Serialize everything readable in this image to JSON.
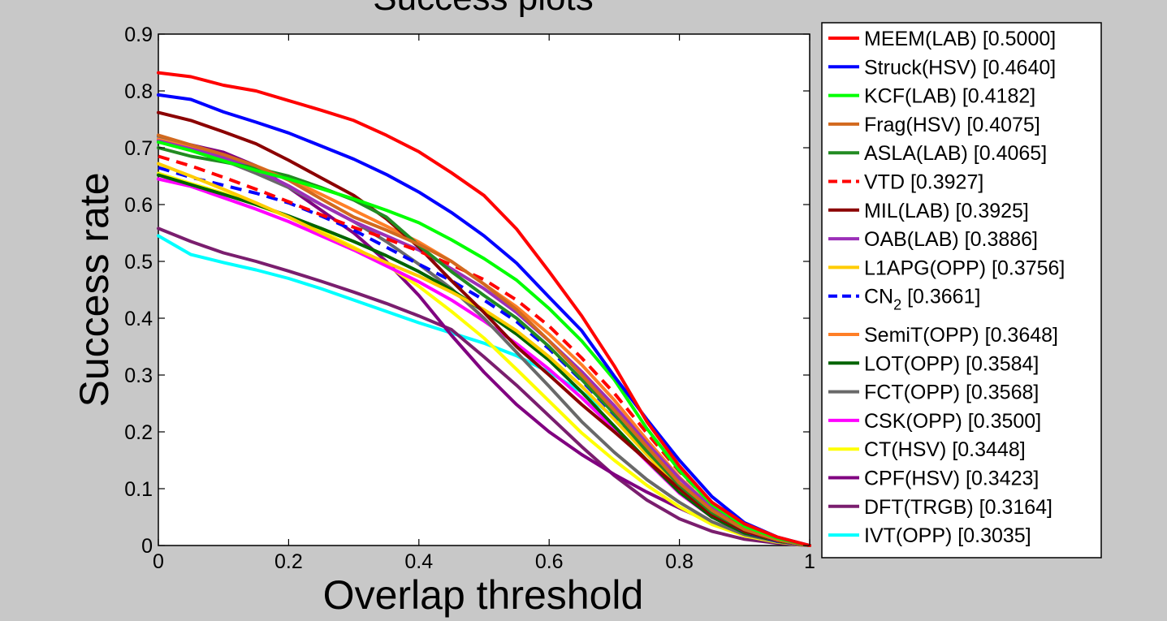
{
  "chart_data": {
    "type": "line",
    "title": "Success plots",
    "xlabel": "Overlap threshold",
    "ylabel": "Success rate",
    "xlim": [
      0,
      1
    ],
    "ylim": [
      0,
      0.9
    ],
    "x_ticks": [
      "0",
      "0.2",
      "0.4",
      "0.6",
      "0.8",
      "1"
    ],
    "y_ticks": [
      "0",
      "0.1",
      "0.2",
      "0.3",
      "0.4",
      "0.5",
      "0.6",
      "0.7",
      "0.8",
      "0.9"
    ],
    "grid": false,
    "legend_position": "outside-right",
    "x": [
      0,
      0.05,
      0.1,
      0.15,
      0.2,
      0.25,
      0.3,
      0.35,
      0.4,
      0.45,
      0.5,
      0.55,
      0.6,
      0.65,
      0.7,
      0.75,
      0.8,
      0.85,
      0.9,
      0.95,
      1
    ],
    "series": [
      {
        "name": "MEEM(LAB) [0.5000]",
        "color": "#ff0000",
        "dash": false,
        "values": [
          0.832,
          0.825,
          0.81,
          0.8,
          0.783,
          0.766,
          0.748,
          0.722,
          0.693,
          0.656,
          0.616,
          0.557,
          0.482,
          0.404,
          0.316,
          0.218,
          0.14,
          0.076,
          0.038,
          0.015,
          0
        ]
      },
      {
        "name": "Struck(HSV) [0.4640]",
        "color": "#0000ff",
        "dash": false,
        "values": [
          0.793,
          0.785,
          0.763,
          0.745,
          0.726,
          0.703,
          0.68,
          0.653,
          0.622,
          0.586,
          0.545,
          0.497,
          0.437,
          0.378,
          0.298,
          0.222,
          0.15,
          0.086,
          0.04,
          0.015,
          0
        ]
      },
      {
        "name": "KCF(LAB) [0.4182]",
        "color": "#00ff00",
        "dash": false,
        "values": [
          0.71,
          0.695,
          0.677,
          0.66,
          0.645,
          0.628,
          0.61,
          0.59,
          0.568,
          0.538,
          0.505,
          0.467,
          0.417,
          0.36,
          0.292,
          0.206,
          0.132,
          0.072,
          0.034,
          0.013,
          0
        ]
      },
      {
        "name": "Frag(HSV) [0.4075]",
        "color": "#d2691e",
        "dash": false,
        "values": [
          0.722,
          0.705,
          0.688,
          0.668,
          0.643,
          0.61,
          0.578,
          0.555,
          0.53,
          0.5,
          0.46,
          0.415,
          0.36,
          0.3,
          0.238,
          0.174,
          0.11,
          0.062,
          0.028,
          0.01,
          0
        ]
      },
      {
        "name": "ASLA(LAB) [0.4065]",
        "color": "#228b22",
        "dash": false,
        "values": [
          0.7,
          0.685,
          0.675,
          0.664,
          0.65,
          0.63,
          0.608,
          0.578,
          0.528,
          0.482,
          0.44,
          0.4,
          0.35,
          0.292,
          0.232,
          0.166,
          0.106,
          0.058,
          0.028,
          0.01,
          0
        ]
      },
      {
        "name": "VTD [0.3927]",
        "color": "#ff0000",
        "dash": true,
        "values": [
          0.685,
          0.668,
          0.648,
          0.627,
          0.605,
          0.582,
          0.56,
          0.54,
          0.518,
          0.494,
          0.468,
          0.432,
          0.386,
          0.33,
          0.268,
          0.198,
          0.13,
          0.073,
          0.032,
          0.012,
          0
        ]
      },
      {
        "name": "MIL(LAB) [0.3925]",
        "color": "#8b0000",
        "dash": false,
        "values": [
          0.762,
          0.748,
          0.728,
          0.707,
          0.678,
          0.647,
          0.616,
          0.575,
          0.525,
          0.466,
          0.41,
          0.35,
          0.3,
          0.248,
          0.2,
          0.15,
          0.1,
          0.054,
          0.025,
          0.009,
          0
        ]
      },
      {
        "name": "OAB(LAB) [0.3886]",
        "color": "#9b30b8",
        "dash": false,
        "values": [
          0.712,
          0.698,
          0.683,
          0.662,
          0.633,
          0.6,
          0.57,
          0.545,
          0.52,
          0.487,
          0.452,
          0.41,
          0.36,
          0.306,
          0.246,
          0.18,
          0.118,
          0.066,
          0.03,
          0.011,
          0
        ]
      },
      {
        "name": "L1APG(OPP) [0.3756]",
        "color": "#ffcc00",
        "dash": false,
        "values": [
          0.672,
          0.65,
          0.627,
          0.603,
          0.578,
          0.55,
          0.523,
          0.498,
          0.474,
          0.446,
          0.415,
          0.378,
          0.332,
          0.28,
          0.222,
          0.16,
          0.1,
          0.055,
          0.025,
          0.009,
          0
        ]
      },
      {
        "name": "CN_2 [0.3661]",
        "color": "#0000ff",
        "dash": true,
        "values": [
          0.665,
          0.648,
          0.634,
          0.62,
          0.603,
          0.58,
          0.555,
          0.525,
          0.495,
          0.466,
          0.432,
          0.394,
          0.346,
          0.29,
          0.23,
          0.166,
          0.104,
          0.056,
          0.024,
          0.008,
          0
        ]
      },
      {
        "name": "SemiT(OPP) [0.3648]",
        "color": "#ff7f27",
        "dash": false,
        "values": [
          0.715,
          0.7,
          0.685,
          0.668,
          0.645,
          0.618,
          0.59,
          0.562,
          0.534,
          0.5,
          0.46,
          0.42,
          0.372,
          0.318,
          0.256,
          0.186,
          0.12,
          0.066,
          0.03,
          0.011,
          0
        ]
      },
      {
        "name": "LOT(OPP) [0.3584]",
        "color": "#006400",
        "dash": false,
        "values": [
          0.652,
          0.635,
          0.618,
          0.6,
          0.58,
          0.558,
          0.535,
          0.51,
          0.482,
          0.45,
          0.412,
          0.372,
          0.326,
          0.27,
          0.21,
          0.15,
          0.094,
          0.05,
          0.022,
          0.008,
          0
        ]
      },
      {
        "name": "FCT(OPP) [0.3568]",
        "color": "#696969",
        "dash": false,
        "values": [
          0.72,
          0.7,
          0.678,
          0.655,
          0.63,
          0.6,
          0.57,
          0.535,
          0.495,
          0.452,
          0.4,
          0.34,
          0.28,
          0.218,
          0.164,
          0.116,
          0.076,
          0.042,
          0.019,
          0.007,
          0
        ]
      },
      {
        "name": "CSK(OPP) [0.3500]",
        "color": "#ff00ff",
        "dash": false,
        "values": [
          0.645,
          0.632,
          0.612,
          0.592,
          0.57,
          0.545,
          0.52,
          0.492,
          0.464,
          0.432,
          0.395,
          0.355,
          0.31,
          0.26,
          0.205,
          0.148,
          0.092,
          0.05,
          0.022,
          0.008,
          0
        ]
      },
      {
        "name": "CT(HSV) [0.3448]",
        "color": "#ffff00",
        "dash": false,
        "values": [
          0.655,
          0.637,
          0.62,
          0.6,
          0.578,
          0.553,
          0.525,
          0.494,
          0.456,
          0.412,
          0.365,
          0.31,
          0.254,
          0.198,
          0.15,
          0.106,
          0.068,
          0.037,
          0.017,
          0.006,
          0
        ]
      },
      {
        "name": "CPF(HSV) [0.3423]",
        "color": "#800080",
        "dash": false,
        "values": [
          0.715,
          0.705,
          0.692,
          0.668,
          0.63,
          0.59,
          0.55,
          0.5,
          0.44,
          0.37,
          0.305,
          0.248,
          0.2,
          0.16,
          0.125,
          0.094,
          0.066,
          0.04,
          0.019,
          0.007,
          0
        ]
      },
      {
        "name": "DFT(TRGB) [0.3164]",
        "color": "#7a1e6e",
        "dash": false,
        "values": [
          0.558,
          0.535,
          0.515,
          0.5,
          0.483,
          0.465,
          0.446,
          0.426,
          0.404,
          0.38,
          0.332,
          0.282,
          0.228,
          0.174,
          0.123,
          0.08,
          0.047,
          0.025,
          0.011,
          0.004,
          0
        ]
      },
      {
        "name": "IVT(OPP) [0.3035]",
        "color": "#00ffff",
        "dash": false,
        "values": [
          0.545,
          0.512,
          0.498,
          0.485,
          0.47,
          0.452,
          0.432,
          0.412,
          0.392,
          0.374,
          0.356,
          0.334,
          0.305,
          0.27,
          0.226,
          0.17,
          0.108,
          0.058,
          0.025,
          0.009,
          0
        ]
      }
    ]
  }
}
